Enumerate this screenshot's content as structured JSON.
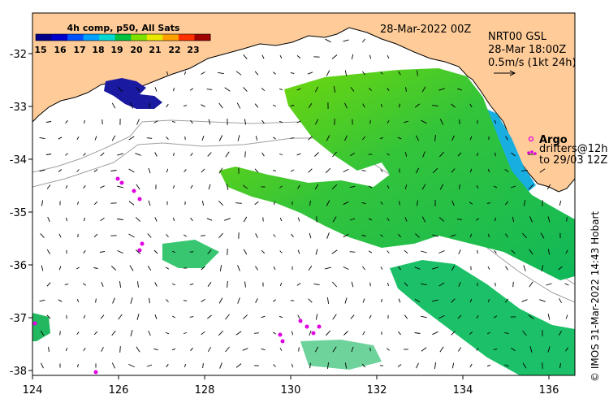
{
  "colorbar": {
    "title": "4h comp, p50, All Sats",
    "ticks": [
      "15",
      "16",
      "17",
      "18",
      "19",
      "20",
      "21",
      "22",
      "23"
    ],
    "colors": [
      "#00008b",
      "#0000cd",
      "#0050ff",
      "#00a0ff",
      "#00d8d0",
      "#00c040",
      "#80e000",
      "#e8e800",
      "#ffa000",
      "#ff3000",
      "#a00000"
    ]
  },
  "header": {
    "date": "28-Mar-2022 00Z",
    "product": "NRT00 GSL",
    "time": "28-Mar 18:00Z",
    "scale": "0.5m/s (1kt 24h)"
  },
  "legend": {
    "argo": "Argo",
    "drifters_line1": "drifters@12h",
    "drifters_line2": "to 29/03 12Z"
  },
  "axes": {
    "x_ticks": [
      "124",
      "126",
      "128",
      "130",
      "132",
      "134",
      "136"
    ],
    "y_ticks": [
      "-32",
      "-33",
      "-34",
      "-35",
      "-36",
      "-37",
      "-38"
    ]
  },
  "credit": "© IMOS 31-Mar-2022 14:43 Hobart",
  "colors": {
    "land": "#ffcc99",
    "argo": "#e000e0",
    "arrow": "#000000"
  }
}
